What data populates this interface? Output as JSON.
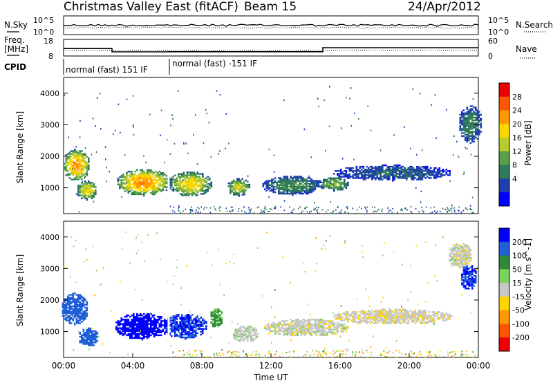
{
  "header": {
    "title": "Christmas Valley East (fitACF)",
    "beam": "Beam 15",
    "date": "24/Apr/2012"
  },
  "noise_panel": {
    "label": "N.Sky",
    "right_label": "N.Search",
    "left_ticks": [
      "10^5",
      "10^0"
    ],
    "right_ticks": [
      "10^5",
      "10^0"
    ]
  },
  "freq_panel": {
    "label_line1": "Freq.",
    "label_line2": "[MHz]",
    "right_label": "Nave",
    "left_ticks": [
      "18",
      "8"
    ],
    "right_ticks": [
      "60",
      "0"
    ]
  },
  "cpid": {
    "label": "CPID",
    "segments": [
      "normal (fast) 151 IF",
      "normal (fast) -151 IF"
    ]
  },
  "axes": {
    "ylabel": "Slant Range [km]",
    "xlabel": "Time UT",
    "yticks": [
      "1000",
      "2000",
      "3000",
      "4000"
    ],
    "xticks": [
      "00:00",
      "04:00",
      "08:00",
      "12:00",
      "16:00",
      "20:00",
      "00:00"
    ]
  },
  "colorbars": {
    "power": {
      "label": "Power [dB]",
      "ticks": [
        "28",
        "24",
        "20",
        "16",
        "12",
        "8",
        "4"
      ],
      "colors": [
        "#ee0000",
        "#ff5500",
        "#ff9900",
        "#ffd700",
        "#b8cc30",
        "#5aa04a",
        "#2f7a5a",
        "#1e3fb0",
        "#0000ff"
      ]
    },
    "velocity": {
      "label": "Velocity [m s^-1]",
      "ticks": [
        "200",
        "100",
        "50",
        "15",
        "-15",
        "-50",
        "-100",
        "-200"
      ],
      "colors": [
        "#0000ff",
        "#1f5fd8",
        "#2f8a3a",
        "#7ad35a",
        "#c8c8c8",
        "#ffd700",
        "#ff9900",
        "#ff5500",
        "#ee0000"
      ]
    }
  },
  "chart_data": {
    "type": "heatmap",
    "x_range_hours": [
      0,
      24
    ],
    "y_range_km": [
      180,
      4500
    ],
    "freq_mhz": {
      "x": [
        0,
        2.8,
        2.8,
        6.1,
        6.1,
        15,
        15,
        24
      ],
      "values": [
        12.5,
        12.5,
        10.5,
        10.5,
        10.6,
        10.6,
        13.0,
        13.0
      ]
    },
    "power_blobs": [
      {
        "t": 0.7,
        "r": 1700,
        "dt": 0.8,
        "dr": 500,
        "db": 24
      },
      {
        "t": 1.3,
        "r": 900,
        "dt": 0.6,
        "dr": 300,
        "db": 20
      },
      {
        "t": 4.6,
        "r": 1150,
        "dt": 1.6,
        "dr": 420,
        "db": 25
      },
      {
        "t": 7.3,
        "r": 1100,
        "dt": 1.3,
        "dr": 400,
        "db": 20
      },
      {
        "t": 10.1,
        "r": 1000,
        "dt": 0.7,
        "dr": 280,
        "db": 17
      },
      {
        "t": 13.2,
        "r": 1050,
        "dt": 1.8,
        "dr": 300,
        "db": 10
      },
      {
        "t": 15.6,
        "r": 1100,
        "dt": 0.9,
        "dr": 220,
        "db": 14
      },
      {
        "t": 19.0,
        "r": 1450,
        "dt": 3.5,
        "dr": 250,
        "db": 7
      },
      {
        "t": 23.5,
        "r": 3000,
        "dt": 0.7,
        "dr": 600,
        "db": 9
      }
    ],
    "velocity_blobs": [
      {
        "t": 0.6,
        "r": 1700,
        "dt": 0.8,
        "dr": 500,
        "v": 180
      },
      {
        "t": 1.4,
        "r": 800,
        "dt": 0.6,
        "dr": 300,
        "v": 160
      },
      {
        "t": 4.5,
        "r": 1150,
        "dt": 1.6,
        "dr": 420,
        "v": 220
      },
      {
        "t": 7.0,
        "r": 1150,
        "dt": 1.3,
        "dr": 400,
        "v": 200
      },
      {
        "t": 8.8,
        "r": 1400,
        "dt": 0.4,
        "dr": 300,
        "v": 60
      },
      {
        "t": 10.5,
        "r": 900,
        "dt": 0.8,
        "dr": 260,
        "v": 5
      },
      {
        "t": 14.0,
        "r": 1100,
        "dt": 2.5,
        "dr": 280,
        "v": 0
      },
      {
        "t": 19.0,
        "r": 1450,
        "dt": 3.5,
        "dr": 250,
        "v": -5
      },
      {
        "t": 23.4,
        "r": 2700,
        "dt": 0.5,
        "dr": 400,
        "v": 200
      },
      {
        "t": 22.9,
        "r": 3400,
        "dt": 0.7,
        "dr": 400,
        "v": 0
      }
    ]
  }
}
